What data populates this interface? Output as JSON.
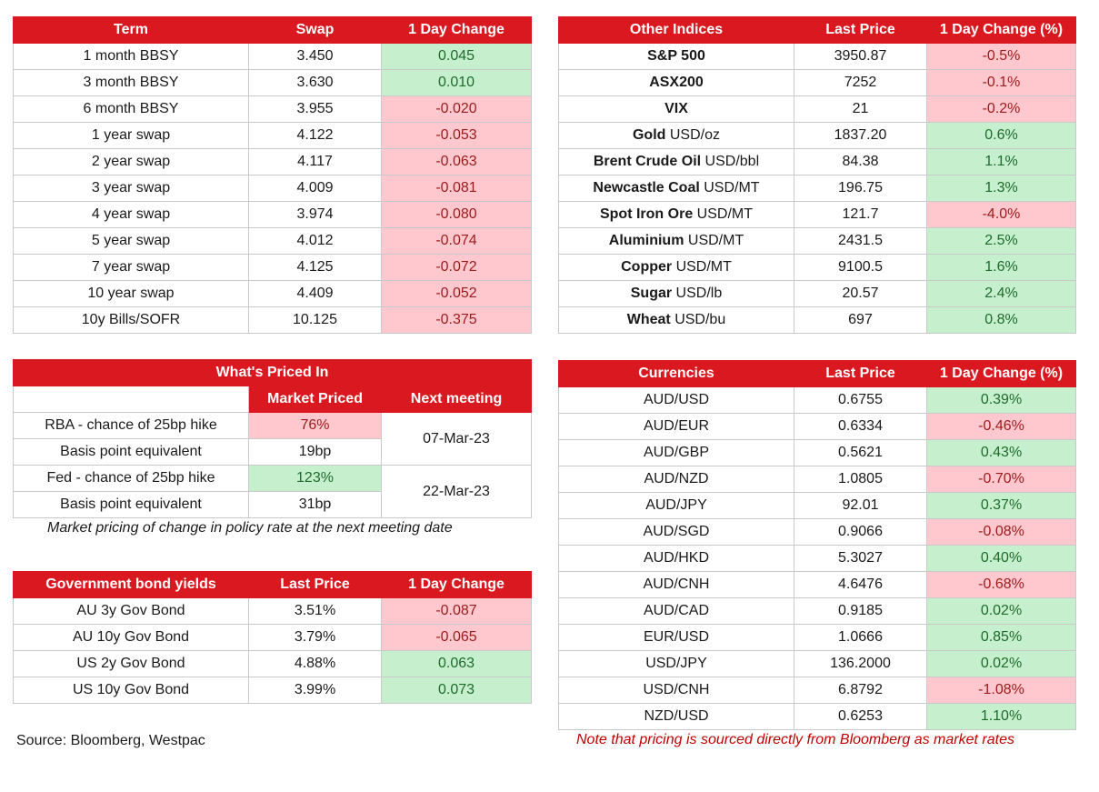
{
  "swap_table": {
    "headers": [
      "Term",
      "Swap",
      "1 Day Change"
    ],
    "rows": [
      [
        "1 month BBSY",
        "3.450",
        "0.045",
        "pos"
      ],
      [
        "3 month BBSY",
        "3.630",
        "0.010",
        "pos"
      ],
      [
        "6 month BBSY",
        "3.955",
        "-0.020",
        "neg"
      ],
      [
        "1 year swap",
        "4.122",
        "-0.053",
        "neg"
      ],
      [
        "2 year swap",
        "4.117",
        "-0.063",
        "neg"
      ],
      [
        "3 year swap",
        "4.009",
        "-0.081",
        "neg"
      ],
      [
        "4 year swap",
        "3.974",
        "-0.080",
        "neg"
      ],
      [
        "5 year swap",
        "4.012",
        "-0.074",
        "neg"
      ],
      [
        "7 year swap",
        "4.125",
        "-0.072",
        "neg"
      ],
      [
        "10 year swap",
        "4.409",
        "-0.052",
        "neg"
      ],
      [
        "10y Bills/SOFR",
        "10.125",
        "-0.375",
        "neg"
      ]
    ]
  },
  "indices_table": {
    "headers": [
      "Other Indices",
      "Last Price",
      "1 Day Change (%)"
    ],
    "rows": [
      [
        "S&P 500",
        "",
        "3950.87",
        "-0.5%",
        "neg"
      ],
      [
        "ASX200",
        "",
        "7252",
        "-0.1%",
        "neg"
      ],
      [
        "VIX",
        "",
        "21",
        "-0.2%",
        "neg"
      ],
      [
        "Gold",
        "USD/oz",
        "1837.20",
        "0.6%",
        "pos"
      ],
      [
        "Brent Crude Oil",
        "USD/bbl",
        "84.38",
        "1.1%",
        "pos"
      ],
      [
        "Newcastle Coal",
        "USD/MT",
        "196.75",
        "1.3%",
        "pos"
      ],
      [
        "Spot Iron Ore",
        "USD/MT",
        "121.7",
        "-4.0%",
        "neg"
      ],
      [
        "Aluminium",
        "USD/MT",
        "2431.5",
        "2.5%",
        "pos"
      ],
      [
        "Copper",
        "USD/MT",
        "9100.5",
        "1.6%",
        "pos"
      ],
      [
        "Sugar",
        "USD/lb",
        "20.57",
        "2.4%",
        "pos"
      ],
      [
        "Wheat",
        "USD/bu",
        "697",
        "0.8%",
        "pos"
      ]
    ]
  },
  "priced_in": {
    "title": "What's Priced In",
    "col_market": "Market Priced",
    "col_next": "Next meeting",
    "rba_label": "RBA - chance of 25bp hike",
    "rba_value": "76%",
    "rba_bp_label": "Basis point equivalent",
    "rba_bp": "19bp",
    "rba_date": "07-Mar-23",
    "fed_label": "Fed - chance of 25bp hike",
    "fed_value": "123%",
    "fed_bp_label": "Basis point equivalent",
    "fed_bp": "31bp",
    "fed_date": "22-Mar-23",
    "note": "Market pricing of change in policy rate at the next meeting date"
  },
  "currencies_table": {
    "headers": [
      "Currencies",
      "Last Price",
      "1 Day Change (%)"
    ],
    "rows": [
      [
        "AUD/USD",
        "0.6755",
        "0.39%",
        "pos"
      ],
      [
        "AUD/EUR",
        "0.6334",
        "-0.46%",
        "neg"
      ],
      [
        "AUD/GBP",
        "0.5621",
        "0.43%",
        "pos"
      ],
      [
        "AUD/NZD",
        "1.0805",
        "-0.70%",
        "neg"
      ],
      [
        "AUD/JPY",
        "92.01",
        "0.37%",
        "pos"
      ],
      [
        "AUD/SGD",
        "0.9066",
        "-0.08%",
        "neg"
      ],
      [
        "AUD/HKD",
        "5.3027",
        "0.40%",
        "pos"
      ],
      [
        "AUD/CNH",
        "4.6476",
        "-0.68%",
        "neg"
      ],
      [
        "AUD/CAD",
        "0.9185",
        "0.02%",
        "pos"
      ],
      [
        "EUR/USD",
        "1.0666",
        "0.85%",
        "pos"
      ],
      [
        "USD/JPY",
        "136.2000",
        "0.02%",
        "pos"
      ],
      [
        "USD/CNH",
        "6.8792",
        "-1.08%",
        "neg"
      ],
      [
        "NZD/USD",
        "0.6253",
        "1.10%",
        "pos"
      ]
    ]
  },
  "bonds_table": {
    "headers": [
      "Government bond yields",
      "Last Price",
      "1 Day Change"
    ],
    "rows": [
      [
        "AU 3y Gov Bond",
        "3.51%",
        "-0.087",
        "neg"
      ],
      [
        "AU 10y Gov Bond",
        "3.79%",
        "-0.065",
        "neg"
      ],
      [
        "US 2y Gov Bond",
        "4.88%",
        "0.063",
        "pos"
      ],
      [
        "US 10y Gov Bond",
        "3.99%",
        "0.073",
        "pos"
      ]
    ]
  },
  "footer": {
    "source": "Source: Bloomberg, Westpac",
    "note": "Note that pricing is sourced directly from Bloomberg as market rates"
  },
  "colors": {
    "header_red": "#d9181f",
    "positive_fill": "#c6efce",
    "negative_fill": "#ffc7ce",
    "note_red": "#c00000"
  }
}
